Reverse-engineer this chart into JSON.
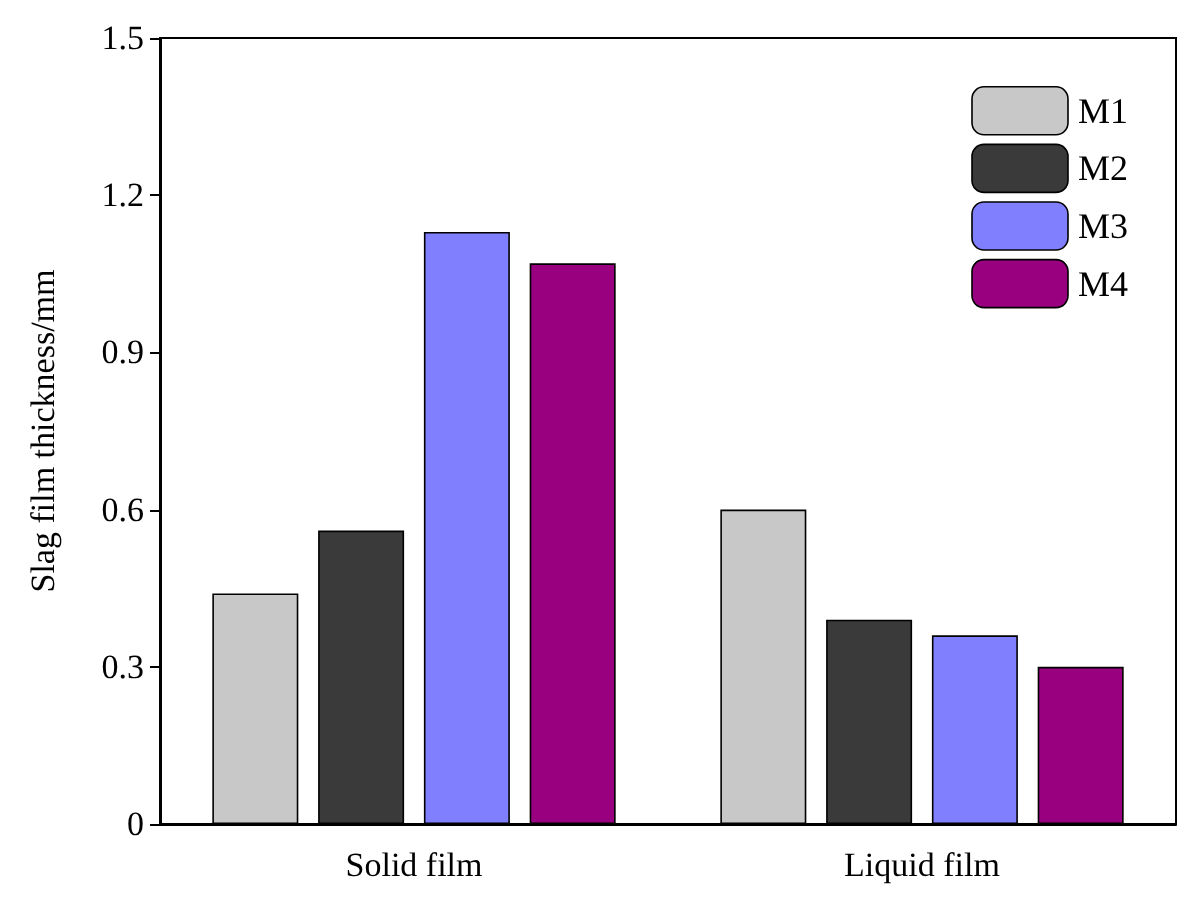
{
  "chart_data": {
    "type": "bar",
    "ylabel": "Slag film thickness/mm",
    "categories": [
      "Solid film",
      "Liquid film"
    ],
    "series": [
      {
        "name": "M1",
        "color": "#c8c8c8",
        "values": [
          0.44,
          0.6
        ]
      },
      {
        "name": "M2",
        "color": "#3a3a3a",
        "values": [
          0.56,
          0.39
        ]
      },
      {
        "name": "M3",
        "color": "#8080ff",
        "values": [
          1.13,
          0.36
        ]
      },
      {
        "name": "M4",
        "color": "#990080",
        "values": [
          1.07,
          0.3
        ]
      }
    ],
    "ylim": [
      0,
      1.5
    ],
    "yticks": [
      0,
      0.3,
      0.6,
      0.9,
      1.2,
      1.5
    ],
    "grid": false,
    "legend": "top right"
  }
}
